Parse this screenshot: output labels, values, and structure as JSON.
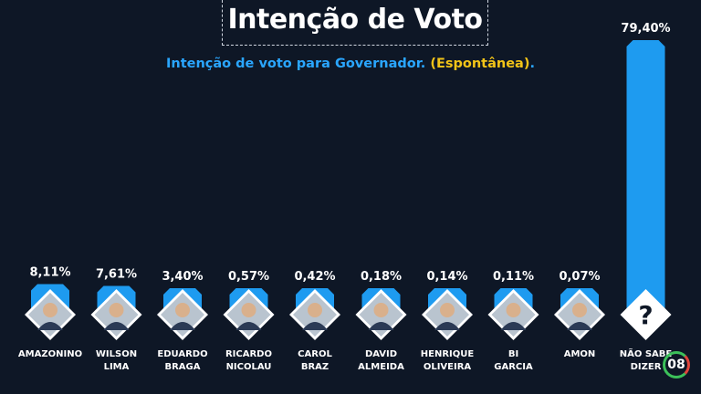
{
  "header": {
    "title": "Intenção de Voto",
    "subtitle_main": "Intenção de voto para Governador.",
    "subtitle_tag": "(Espontânea)",
    "subtitle_dot": "."
  },
  "page_badge": "08",
  "colors": {
    "background": "#0e1726",
    "bar": "#1e9bf0",
    "subtitle_main": "#2aa6ff",
    "subtitle_tag": "#f2c418",
    "label_text": "#ffffff"
  },
  "chart_data": {
    "type": "bar",
    "value_labels": [
      "8,11%",
      "7,61%",
      "3,40%",
      "0,57%",
      "0,42%",
      "0,18%",
      "0,14%",
      "0,11%",
      "0,07%",
      "79,40%"
    ],
    "categories": [
      [
        "AMAZONINO"
      ],
      [
        "WILSON",
        "LIMA"
      ],
      [
        "EDUARDO",
        "BRAGA"
      ],
      [
        "RICARDO",
        "NICOLAU"
      ],
      [
        "CAROL",
        "BRAZ"
      ],
      [
        "DAVID",
        "ALMEIDA"
      ],
      [
        "HENRIQUE",
        "OLIVEIRA"
      ],
      [
        "BI",
        "GARCIA"
      ],
      [
        "AMON"
      ],
      [
        "NÃO SABE",
        "DIZER"
      ]
    ],
    "values": [
      8.11,
      7.61,
      3.4,
      0.57,
      0.42,
      0.18,
      0.14,
      0.11,
      0.07,
      79.4
    ],
    "icons": [
      "avatar-photo",
      "avatar-photo",
      "avatar-photo",
      "avatar-photo",
      "avatar-photo",
      "avatar-photo",
      "avatar-photo",
      "avatar-photo",
      "avatar-photo",
      "question-mark-icon"
    ],
    "question_glyph": "?"
  }
}
